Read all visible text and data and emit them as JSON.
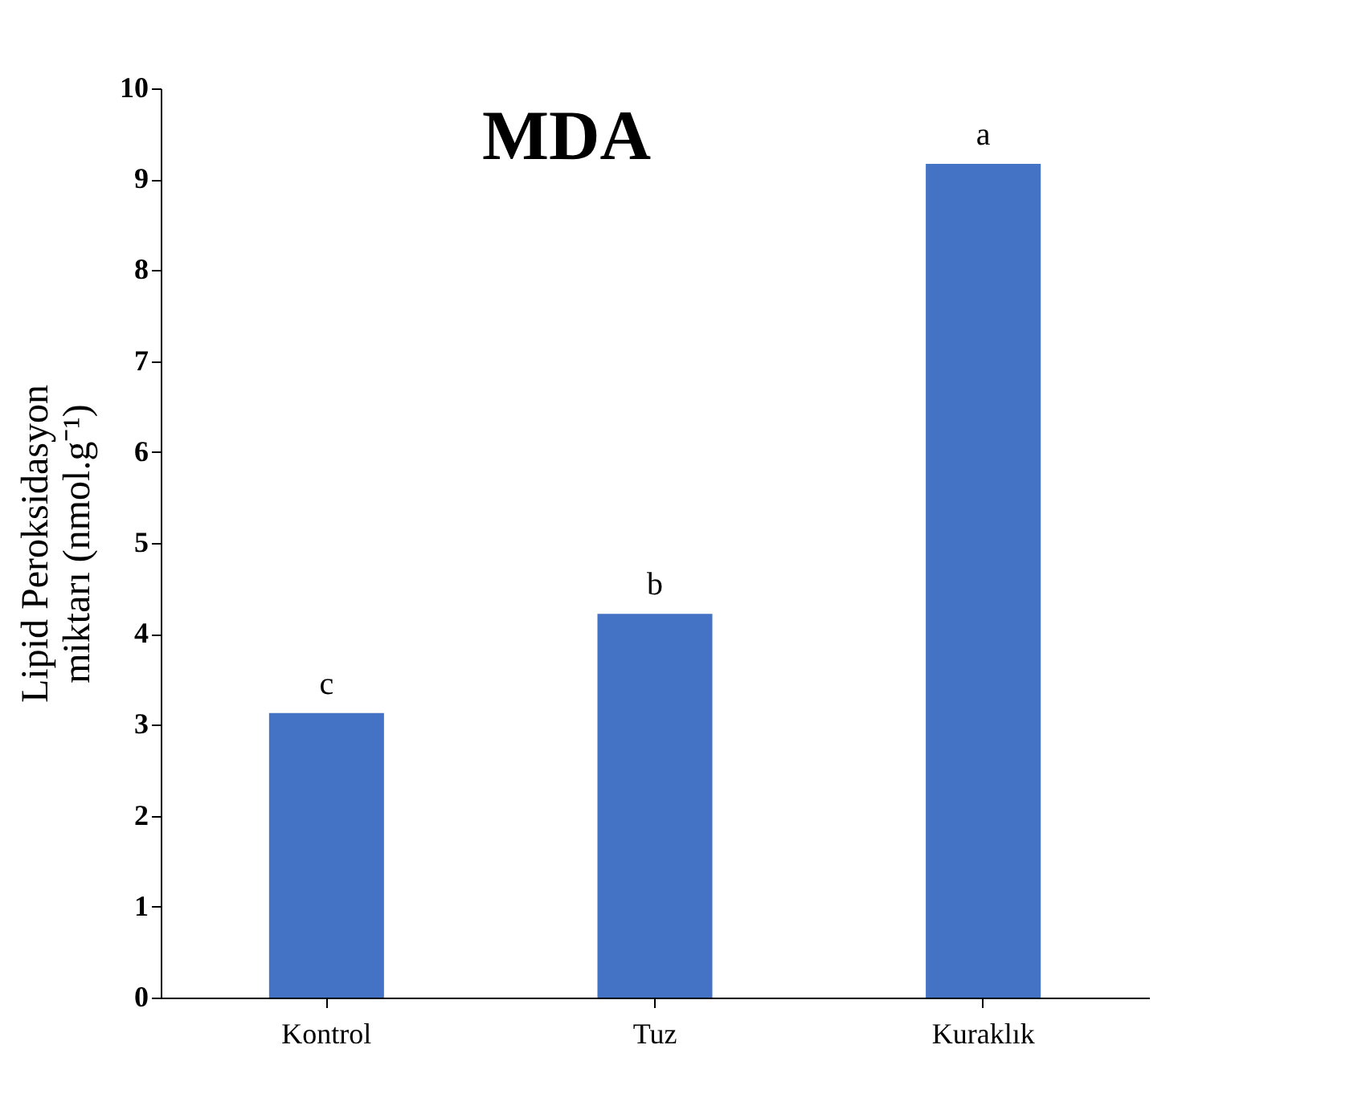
{
  "chart_data": {
    "type": "bar",
    "title": "MDA",
    "ylabel": "Lipid Peroksidasyon miktarı (nmol.g⁻¹)",
    "categories": [
      "Kontrol",
      "Tuz",
      "Kuraklık"
    ],
    "values": [
      3.13,
      4.22,
      9.17
    ],
    "color": "#4472c4",
    "ylim": [
      0,
      10
    ],
    "yticks": [
      0,
      1,
      2,
      3,
      4,
      5,
      6,
      7,
      8,
      9,
      10
    ],
    "grid": false,
    "annotations": [
      {
        "text": "c",
        "x": "Kontrol",
        "y": 3.13
      },
      {
        "text": "b",
        "x": "Tuz",
        "y": 4.22
      },
      {
        "text": "a",
        "x": "Kuraklık",
        "y": 9.17
      }
    ]
  }
}
